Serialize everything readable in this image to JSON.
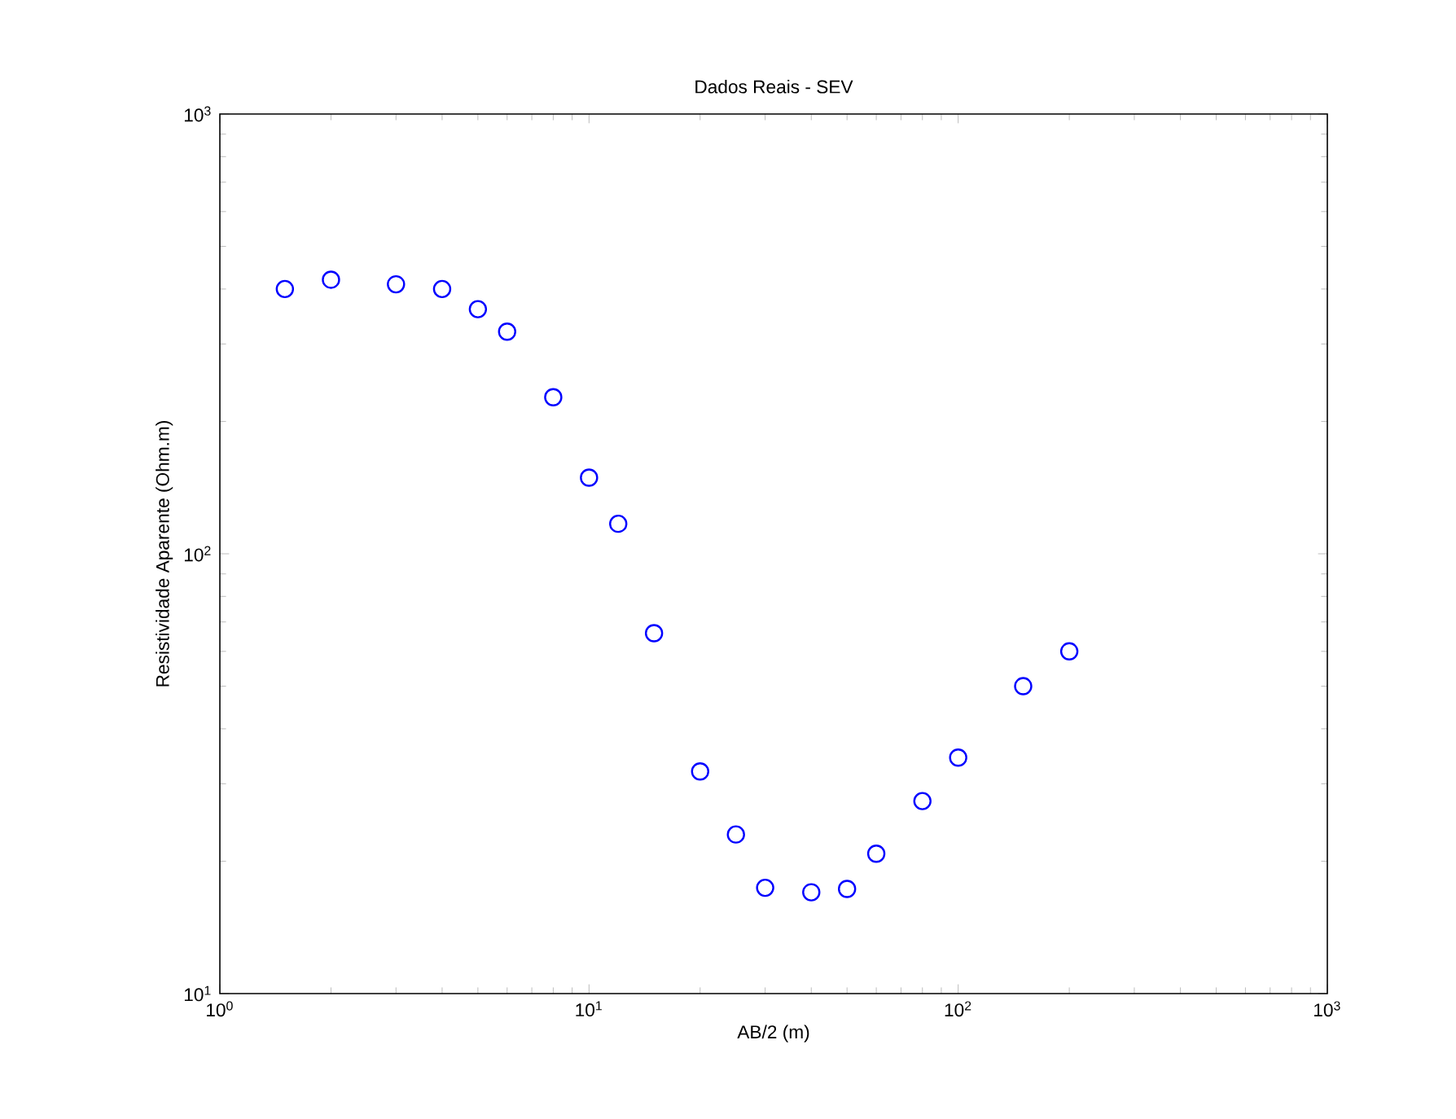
{
  "chart_data": {
    "type": "scatter",
    "title": "Dados Reais - SEV",
    "xlabel": "AB/2 (m)",
    "ylabel": "Resistividade Aparente (Ohm.m)",
    "log": "xy",
    "marker": "circle",
    "grid": false,
    "xlim": [
      1,
      1000
    ],
    "ylim": [
      10,
      1000
    ],
    "xticks": [
      {
        "value": 1,
        "label": "10$^{0}$"
      },
      {
        "value": 10,
        "label": "10$^{1}$"
      },
      {
        "value": 100,
        "label": "10$^{2}$"
      },
      {
        "value": 1000,
        "label": "10$^{3}$"
      }
    ],
    "yticks": [
      {
        "value": 10,
        "label": "10$^{1}$"
      },
      {
        "value": 100,
        "label": "10$^{2}$"
      },
      {
        "value": 1000,
        "label": "10$^{3}$"
      }
    ],
    "series": [
      {
        "color": "#0000ff",
        "x": [
          1.5,
          2,
          3,
          4,
          5,
          6,
          8,
          10,
          12,
          15,
          20,
          25,
          30,
          40,
          50,
          60,
          80,
          100,
          150,
          200
        ],
        "values": [
          400,
          420,
          410,
          400,
          360,
          320,
          227,
          149,
          117,
          66,
          32,
          23,
          17.4,
          17,
          17.3,
          20.8,
          27.4,
          34.4,
          50,
          60
        ]
      }
    ]
  }
}
